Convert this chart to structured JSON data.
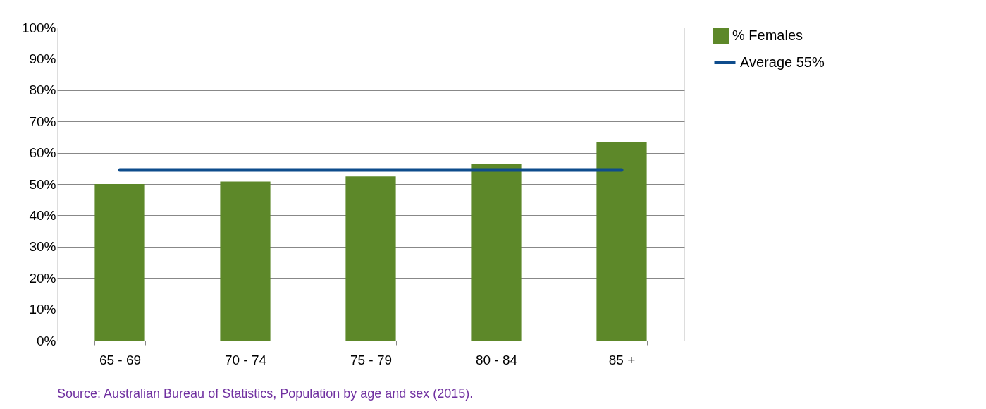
{
  "chart_data": {
    "type": "bar",
    "categories": [
      "65 - 69",
      "70 - 74",
      "75 - 79",
      "80 - 84",
      "85 +"
    ],
    "series": [
      {
        "name": "% Females",
        "color": "#5d8829",
        "values": [
          50.0,
          50.8,
          52.4,
          56.3,
          63.3
        ]
      },
      {
        "name": "Average 55%",
        "type": "line",
        "color": "#0e4c8c",
        "values": [
          54.5,
          54.5,
          54.5,
          54.5,
          54.5
        ]
      }
    ],
    "ylim": [
      0,
      100
    ],
    "yticks": [
      {
        "value": 0,
        "label": "0%"
      },
      {
        "value": 10,
        "label": "10%"
      },
      {
        "value": 20,
        "label": "20%"
      },
      {
        "value": 30,
        "label": "30%"
      },
      {
        "value": 40,
        "label": "40%"
      },
      {
        "value": 50,
        "label": "50%"
      },
      {
        "value": 60,
        "label": "60%"
      },
      {
        "value": 70,
        "label": "70%"
      },
      {
        "value": 80,
        "label": "80%"
      },
      {
        "value": 90,
        "label": "90%"
      },
      {
        "value": 100,
        "label": "100%"
      }
    ],
    "grid": "y",
    "legend": "right",
    "annotations": [
      "Source:  Australian Bureau of Statistics, Population by age and sex (2015)."
    ]
  }
}
